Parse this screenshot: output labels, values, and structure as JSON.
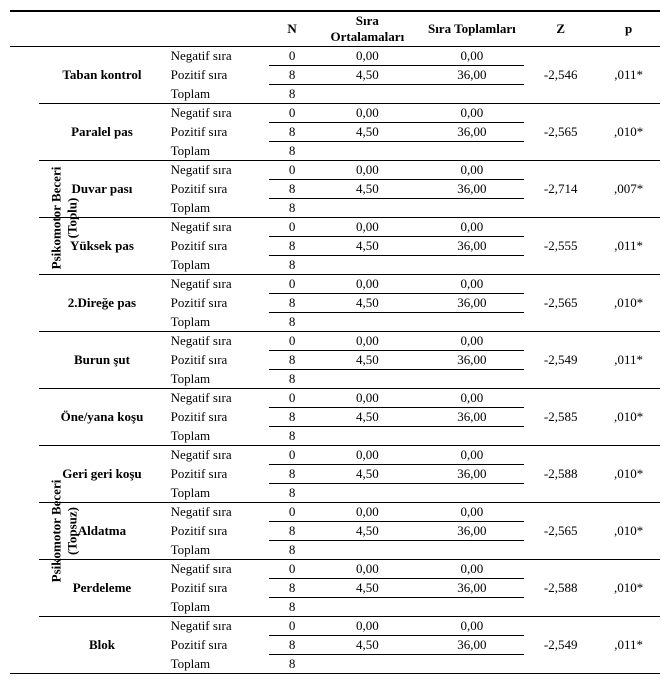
{
  "header": {
    "n": "N",
    "mean": "Sıra Ortalamaları",
    "sum": "Sıra Toplamları",
    "z": "Z",
    "p": "p"
  },
  "rank_labels": {
    "neg": "Negatif sıra",
    "pos": "Pozitif sıra",
    "tot": "Toplam"
  },
  "groups": [
    {
      "label": "Psikomotor Beceri",
      "sublabel": "(Toplu)",
      "skills": [
        {
          "name": "Taban kontrol",
          "neg": {
            "n": "0",
            "mean": "0,00",
            "sum": "0,00"
          },
          "pos": {
            "n": "8",
            "mean": "4,50",
            "sum": "36,00"
          },
          "tot": {
            "n": "8"
          },
          "z": "-2,546",
          "p": ",011*"
        },
        {
          "name": "Paralel pas",
          "neg": {
            "n": "0",
            "mean": "0,00",
            "sum": "0,00"
          },
          "pos": {
            "n": "8",
            "mean": "4,50",
            "sum": "36,00"
          },
          "tot": {
            "n": "8"
          },
          "z": "-2,565",
          "p": ",010*"
        },
        {
          "name": "Duvar pası",
          "neg": {
            "n": "0",
            "mean": "0,00",
            "sum": "0,00"
          },
          "pos": {
            "n": "8",
            "mean": "4,50",
            "sum": "36,00"
          },
          "tot": {
            "n": "8"
          },
          "z": "-2,714",
          "p": ",007*"
        },
        {
          "name": "Yüksek pas",
          "neg": {
            "n": "0",
            "mean": "0,00",
            "sum": "0,00"
          },
          "pos": {
            "n": "8",
            "mean": "4,50",
            "sum": "36,00"
          },
          "tot": {
            "n": "8"
          },
          "z": "-2,555",
          "p": ",011*"
        },
        {
          "name": "2.Direğe pas",
          "neg": {
            "n": "0",
            "mean": "0,00",
            "sum": "0,00"
          },
          "pos": {
            "n": "8",
            "mean": "4,50",
            "sum": "36,00"
          },
          "tot": {
            "n": "8"
          },
          "z": "-2,565",
          "p": ",010*"
        },
        {
          "name": "Burun şut",
          "neg": {
            "n": "0",
            "mean": "0,00",
            "sum": "0,00"
          },
          "pos": {
            "n": "8",
            "mean": "4,50",
            "sum": "36,00"
          },
          "tot": {
            "n": "8"
          },
          "z": "-2,549",
          "p": ",011*"
        }
      ]
    },
    {
      "label": "Psikomotor Beceri",
      "sublabel": "(Topsuz)",
      "skills": [
        {
          "name": "Öne/yana koşu",
          "neg": {
            "n": "0",
            "mean": "0,00",
            "sum": "0,00"
          },
          "pos": {
            "n": "8",
            "mean": "4,50",
            "sum": "36,00"
          },
          "tot": {
            "n": "8"
          },
          "z": "-2,585",
          "p": ",010*"
        },
        {
          "name": "Geri geri koşu",
          "neg": {
            "n": "0",
            "mean": "0,00",
            "sum": "0,00"
          },
          "pos": {
            "n": "8",
            "mean": "4,50",
            "sum": "36,00"
          },
          "tot": {
            "n": "8"
          },
          "z": "-2,588",
          "p": ",010*"
        },
        {
          "name": "Aldatma",
          "neg": {
            "n": "0",
            "mean": "0,00",
            "sum": "0,00"
          },
          "pos": {
            "n": "8",
            "mean": "4,50",
            "sum": "36,00"
          },
          "tot": {
            "n": "8"
          },
          "z": "-2,565",
          "p": ",010*"
        },
        {
          "name": "Perdeleme",
          "neg": {
            "n": "0",
            "mean": "0,00",
            "sum": "0,00"
          },
          "pos": {
            "n": "8",
            "mean": "4,50",
            "sum": "36,00"
          },
          "tot": {
            "n": "8"
          },
          "z": "-2,588",
          "p": ",010*"
        },
        {
          "name": "Blok",
          "neg": {
            "n": "0",
            "mean": "0,00",
            "sum": "0,00"
          },
          "pos": {
            "n": "8",
            "mean": "4,50",
            "sum": "36,00"
          },
          "tot": {
            "n": "8"
          },
          "z": "-2,549",
          "p": ",011*"
        }
      ]
    }
  ]
}
